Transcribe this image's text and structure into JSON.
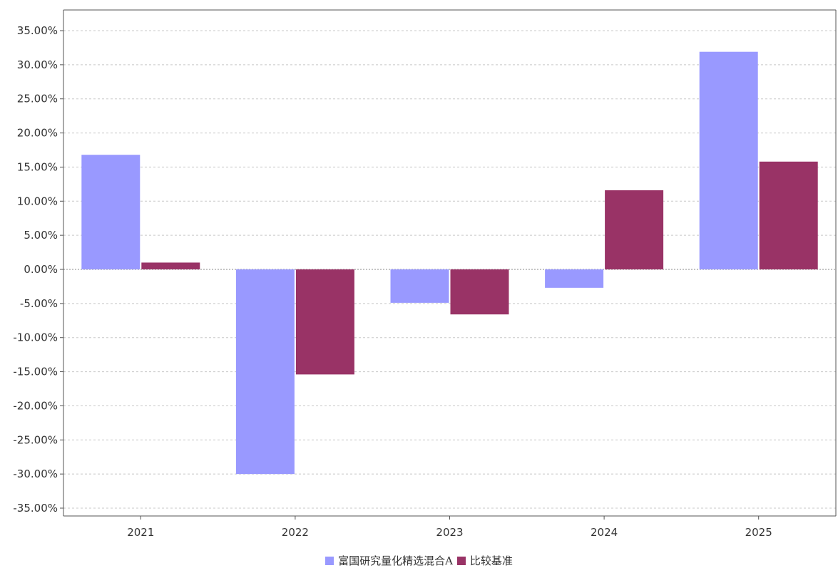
{
  "chart_data": {
    "type": "bar",
    "categories": [
      "2021",
      "2022",
      "2023",
      "2024",
      "2025"
    ],
    "series": [
      {
        "name": "富国研究量化精选混合A",
        "color": "#9999ff",
        "values": [
          16.8,
          -30.0,
          -4.9,
          -2.7,
          31.9
        ]
      },
      {
        "name": "比较基准",
        "color": "#993366",
        "values": [
          1.0,
          -15.4,
          -6.6,
          11.6,
          15.8
        ]
      }
    ],
    "ylim": [
      -35,
      35
    ],
    "yticks": [
      35,
      30,
      25,
      20,
      15,
      10,
      5,
      0,
      -5,
      -10,
      -15,
      -20,
      -25,
      -30,
      -35
    ],
    "ytick_labels": [
      "35.00%",
      "30.00%",
      "25.00%",
      "20.00%",
      "15.00%",
      "10.00%",
      "5.00%",
      "0.00%",
      "-5.00%",
      "-10.00%",
      "-15.00%",
      "-20.00%",
      "-25.00%",
      "-30.00%",
      "-35.00%"
    ],
    "grid": true,
    "legend_position": "bottom-center",
    "title": "",
    "xlabel": "",
    "ylabel": ""
  }
}
